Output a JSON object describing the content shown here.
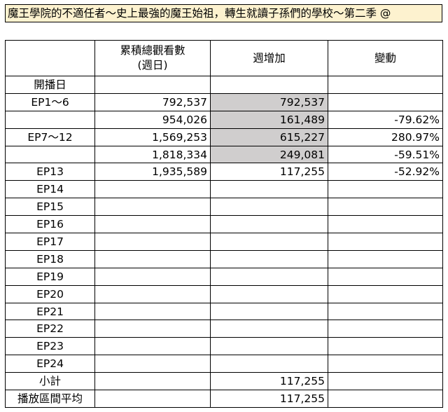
{
  "title": "魔王學院的不適任者～史上最強的魔王始祖，轉生就讀子孫們的學校～第二季 @",
  "headers": {
    "label": "",
    "cumulative": "累積總觀看數\n(週日)",
    "weekly": "週增加",
    "change": "變動"
  },
  "rows": [
    {
      "label": "開播日",
      "cumulative": "",
      "weekly": "",
      "change": ""
    },
    {
      "label": "EP1～6",
      "cumulative": "792,537",
      "weekly": "792,537",
      "change": ""
    },
    {
      "label": "",
      "cumulative": "954,026",
      "weekly": "161,489",
      "change": "-79.62%"
    },
    {
      "label": "EP7～12",
      "cumulative": "1,569,253",
      "weekly": "615,227",
      "change": "280.97%"
    },
    {
      "label": "",
      "cumulative": "1,818,334",
      "weekly": "249,081",
      "change": "-59.51%"
    },
    {
      "label": "EP13",
      "cumulative": "1,935,589",
      "weekly": "117,255",
      "change": "-52.92%"
    },
    {
      "label": "EP14",
      "cumulative": "",
      "weekly": "",
      "change": ""
    },
    {
      "label": "EP15",
      "cumulative": "",
      "weekly": "",
      "change": ""
    },
    {
      "label": "EP16",
      "cumulative": "",
      "weekly": "",
      "change": ""
    },
    {
      "label": "EP17",
      "cumulative": "",
      "weekly": "",
      "change": ""
    },
    {
      "label": "EP18",
      "cumulative": "",
      "weekly": "",
      "change": ""
    },
    {
      "label": "EP19",
      "cumulative": "",
      "weekly": "",
      "change": ""
    },
    {
      "label": "EP20",
      "cumulative": "",
      "weekly": "",
      "change": ""
    },
    {
      "label": "EP21",
      "cumulative": "",
      "weekly": "",
      "change": ""
    },
    {
      "label": "EP22",
      "cumulative": "",
      "weekly": "",
      "change": ""
    },
    {
      "label": "EP23",
      "cumulative": "",
      "weekly": "",
      "change": ""
    },
    {
      "label": "EP24",
      "cumulative": "",
      "weekly": "",
      "change": ""
    }
  ],
  "footer": [
    {
      "label": "小計",
      "weekly": "117,255"
    },
    {
      "label": "播放區間平均",
      "weekly": "117,255"
    }
  ],
  "colors": {
    "title_bg": "#fdf2cf",
    "shaded_cell": "#d0cece",
    "border": "#000000"
  }
}
